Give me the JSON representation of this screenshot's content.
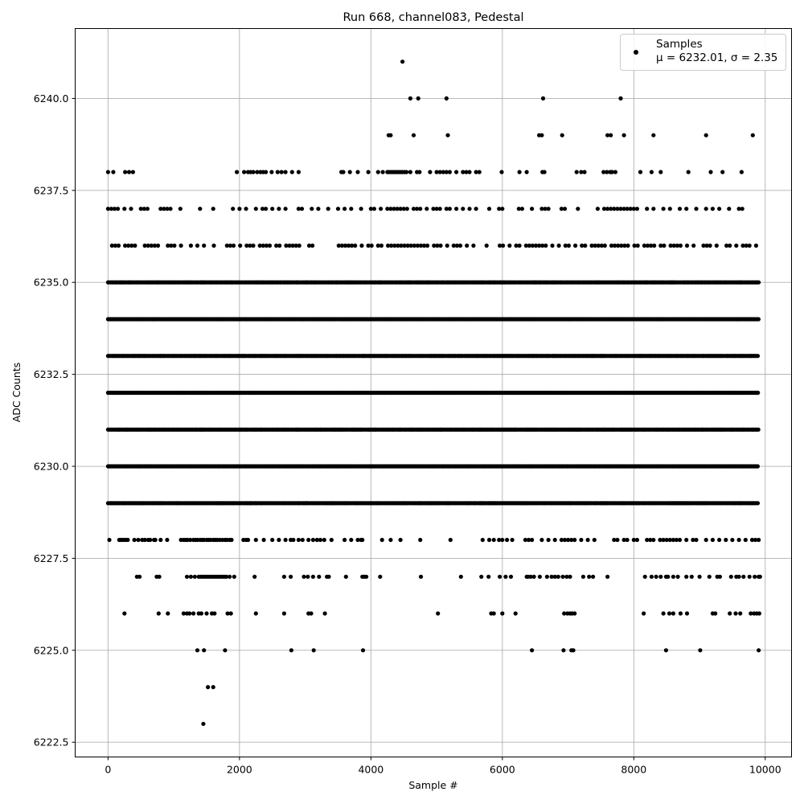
{
  "chart_data": {
    "type": "scatter",
    "title": "Run 668, channel083, Pedestal",
    "xlabel": "Sample #",
    "ylabel": "ADC Counts",
    "xlim": [
      -500,
      10400
    ],
    "ylim": [
      6222.1,
      6241.9
    ],
    "xticks": [
      0,
      2000,
      4000,
      6000,
      8000,
      10000
    ],
    "yticks": [
      6222.5,
      6225.0,
      6227.5,
      6230.0,
      6232.5,
      6235.0,
      6237.5,
      6240.0
    ],
    "xtick_labels": [
      "0",
      "2000",
      "4000",
      "6000",
      "8000",
      "10000"
    ],
    "ytick_labels": [
      "6222.5",
      "6225.0",
      "6227.5",
      "6230.0",
      "6232.5",
      "6235.0",
      "6237.5",
      "6240.0"
    ],
    "grid": true,
    "legend": {
      "position": "top-right",
      "entries": [
        {
          "label": "Samples",
          "stats_label": "μ = 6232.01, σ = 2.35"
        }
      ]
    },
    "marker_color": "#000000",
    "series": [
      {
        "name": "Samples",
        "x_range": [
          0,
          9900
        ],
        "dense_levels": [
          6229,
          6230,
          6231,
          6232,
          6233,
          6234,
          6235
        ],
        "sparse_levels": [
          {
            "y": 6236,
            "x": [
              60,
              110,
              160,
              260,
              310,
              360,
              410,
              560,
              610,
              660,
              710,
              760,
              910,
              960,
              1010,
              1110,
              1260,
              1360,
              1460,
              1610,
              1810,
              1860,
              1910,
              2010,
              2110,
              2160,
              2210,
              2310,
              2360,
              2410,
              2460,
              2560,
              2610,
              2710,
              2760,
              2810,
              2860,
              2910,
              3060,
              3110,
              3510,
              3560,
              3610,
              3660,
              3710,
              3760,
              3860,
              3960,
              4010,
              4110,
              4160,
              4260,
              4310,
              4360,
              4410,
              4460,
              4510,
              4560,
              4610,
              4660,
              4710,
              4760,
              4810,
              4860,
              4960,
              5010,
              5060,
              5160,
              5260,
              5310,
              5360,
              5460,
              5560,
              5760,
              5960,
              6010,
              6110,
              6210,
              6260,
              6360,
              6410,
              6460,
              6510,
              6560,
              6610,
              6660,
              6760,
              6860,
              6960,
              7010,
              7110,
              7210,
              7260,
              7360,
              7410,
              7460,
              7510,
              7560,
              7660,
              7710,
              7760,
              7810,
              7860,
              7910,
              8010,
              8060,
              8160,
              8210,
              8260,
              8310,
              8410,
              8460,
              8560,
              8610,
              8660,
              8710,
              8810,
              8910,
              9060,
              9110,
              9160,
              9260,
              9410,
              9460,
              9560,
              9660,
              9710,
              9760,
              9860
            ]
          },
          {
            "y": 6237,
            "x": [
              0,
              50,
              100,
              150,
              250,
              350,
              500,
              550,
              600,
              800,
              850,
              900,
              950,
              1100,
              1400,
              1600,
              1900,
              2000,
              2100,
              2250,
              2350,
              2400,
              2500,
              2600,
              2700,
              2900,
              2950,
              3100,
              3200,
              3350,
              3500,
              3600,
              3700,
              3850,
              4000,
              4050,
              4150,
              4250,
              4300,
              4350,
              4400,
              4450,
              4500,
              4550,
              4650,
              4700,
              4750,
              4850,
              4950,
              5000,
              5050,
              5150,
              5200,
              5300,
              5400,
              5500,
              5600,
              5800,
              5950,
              6000,
              6250,
              6300,
              6450,
              6600,
              6650,
              6700,
              6900,
              6950,
              7150,
              7450,
              7550,
              7600,
              7650,
              7700,
              7750,
              7800,
              7850,
              7900,
              7950,
              8000,
              8050,
              8200,
              8300,
              8450,
              8550,
              8700,
              8800,
              8950,
              9100,
              9200,
              9300,
              9450,
              9600,
              9650
            ]
          },
          {
            "y": 6238,
            "x": [
              0,
              80,
              260,
              320,
              380,
              1960,
              2070,
              2130,
              2170,
              2210,
              2270,
              2320,
              2360,
              2400,
              2490,
              2580,
              2640,
              2700,
              2800,
              2900,
              3550,
              3580,
              3680,
              3800,
              3960,
              4110,
              4180,
              4250,
              4270,
              4300,
              4330,
              4360,
              4390,
              4420,
              4450,
              4480,
              4510,
              4540,
              4600,
              4700,
              4740,
              4900,
              5000,
              5050,
              5100,
              5150,
              5200,
              5300,
              5400,
              5450,
              5500,
              5600,
              5650,
              5990,
              6260,
              6370,
              6610,
              6640,
              7130,
              7200,
              7250,
              7540,
              7590,
              7640,
              7670,
              7720,
              8100,
              8270,
              8410,
              8830,
              9170,
              9350,
              9640
            ]
          },
          {
            "y": 6239,
            "x": [
              4270,
              4300,
              4650,
              5170,
              6560,
              6600,
              6910,
              7600,
              7650,
              7850,
              8300,
              9100,
              9810
            ]
          },
          {
            "y": 6240,
            "x": [
              4600,
              4720,
              5150,
              6620,
              7800
            ]
          },
          {
            "y": 6241,
            "x": [
              4480
            ]
          },
          {
            "y": 6228,
            "x": [
              20,
              170,
              190,
              210,
              240,
              270,
              300,
              400,
              460,
              520,
              560,
              610,
              640,
              700,
              720,
              800,
              900,
              1110,
              1150,
              1180,
              1210,
              1250,
              1300,
              1330,
              1360,
              1400,
              1430,
              1460,
              1500,
              1530,
              1560,
              1600,
              1630,
              1660,
              1700,
              1740,
              1780,
              1810,
              1850,
              1880,
              2060,
              2100,
              2130,
              2250,
              2370,
              2500,
              2600,
              2700,
              2780,
              2820,
              2900,
              2960,
              3050,
              3120,
              3180,
              3230,
              3290,
              3400,
              3600,
              3700,
              3800,
              3850,
              3870,
              4170,
              4300,
              4450,
              4750,
              5210,
              5700,
              5800,
              5870,
              5950,
              6000,
              6070,
              6150,
              6350,
              6400,
              6450,
              6600,
              6700,
              6800,
              6900,
              6950,
              7000,
              7050,
              7100,
              7200,
              7300,
              7400,
              7700,
              7750,
              7850,
              7900,
              8000,
              8050,
              8200,
              8250,
              8300,
              8400,
              8450,
              8500,
              8550,
              8600,
              8650,
              8700,
              8800,
              8900,
              8950,
              9100,
              9200,
              9300,
              9400,
              9500,
              9600,
              9700,
              9800,
              9850,
              9900
            ]
          },
          {
            "y": 6227,
            "x": [
              440,
              480,
              740,
              780,
              1200,
              1260,
              1320,
              1380,
              1410,
              1440,
              1470,
              1500,
              1530,
              1560,
              1590,
              1620,
              1650,
              1680,
              1710,
              1740,
              1770,
              1800,
              1850,
              1920,
              2230,
              2680,
              2780,
              2980,
              3040,
              3120,
              3210,
              3330,
              3360,
              3620,
              3870,
              3900,
              3930,
              4140,
              4760,
              5370,
              5680,
              5790,
              5960,
              6050,
              6130,
              6370,
              6390,
              6430,
              6480,
              6570,
              6680,
              6750,
              6800,
              6850,
              6920,
              6980,
              7030,
              7230,
              7320,
              7380,
              7600,
              8170,
              8270,
              8340,
              8410,
              8490,
              8520,
              8600,
              8670,
              8800,
              8880,
              9000,
              9150,
              9270,
              9310,
              9480,
              9560,
              9600,
              9670,
              9760,
              9840,
              9900,
              9920
            ]
          },
          {
            "y": 6226,
            "x": [
              250,
              770,
              910,
              1150,
              1200,
              1240,
              1300,
              1380,
              1420,
              1500,
              1580,
              1620,
              1820,
              1870,
              2250,
              2680,
              3050,
              3090,
              3300,
              5020,
              5830,
              5870,
              6000,
              6200,
              6940,
              6990,
              7030,
              7060,
              7100,
              8150,
              8450,
              8540,
              8600,
              8710,
              8810,
              9200,
              9240,
              9460,
              9550,
              9620,
              9780,
              9830,
              9870,
              9910
            ]
          },
          {
            "y": 6225,
            "x": [
              1360,
              1460,
              1780,
              2790,
              3130,
              3880,
              6450,
              6930,
              7050,
              7080,
              8490,
              9010,
              9900
            ]
          },
          {
            "y": 6224,
            "x": [
              1520,
              1600
            ]
          },
          {
            "y": 6223,
            "x": [
              1450
            ]
          }
        ]
      }
    ]
  }
}
